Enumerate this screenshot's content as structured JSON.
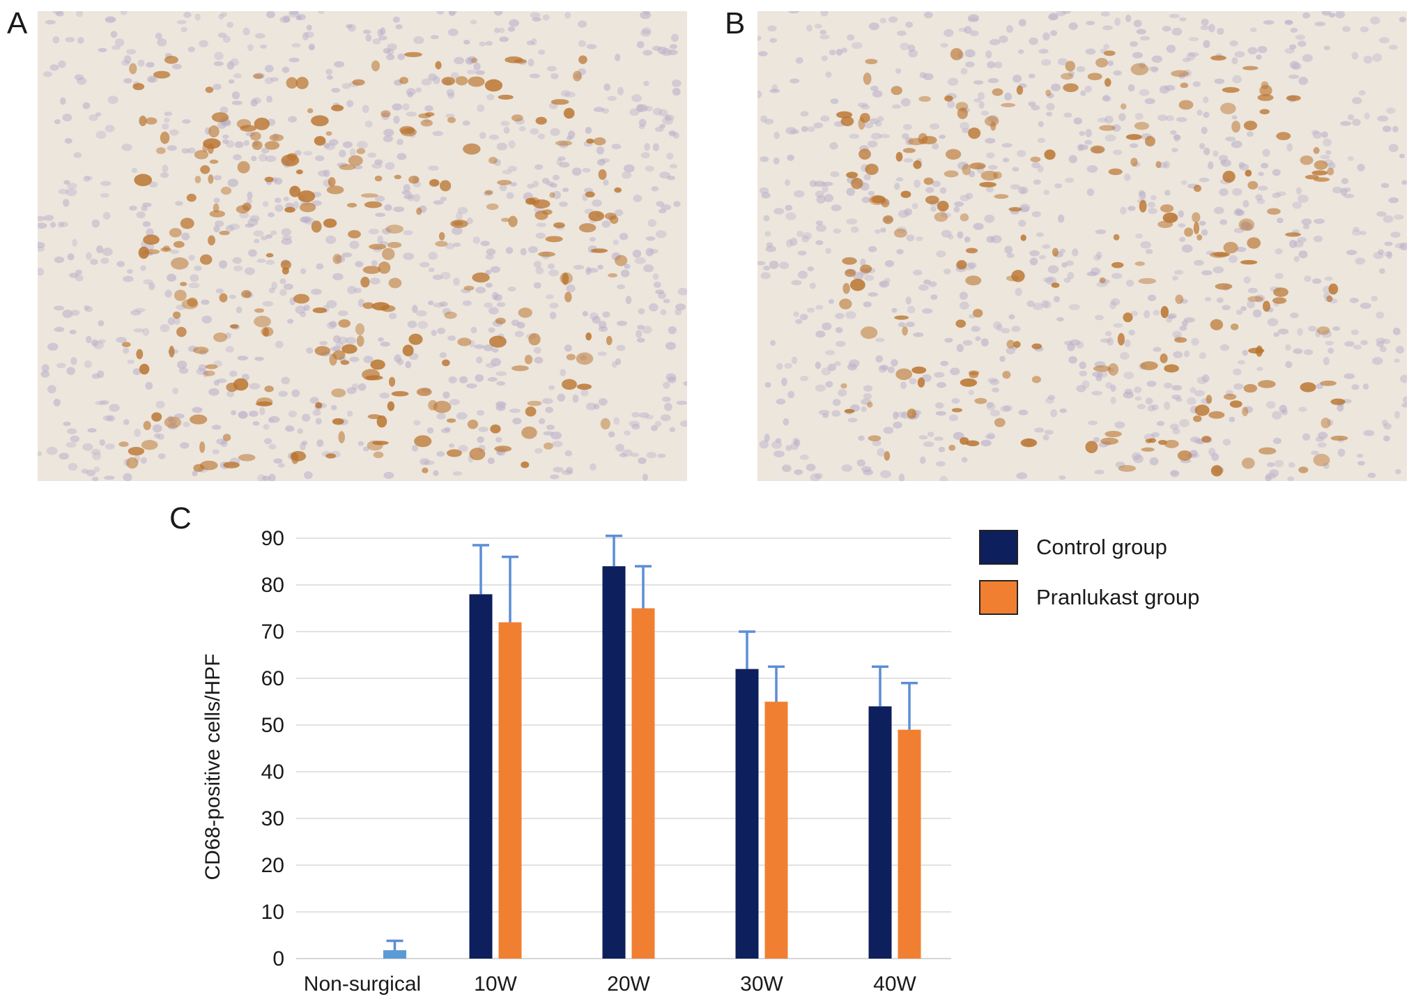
{
  "panels": {
    "a": {
      "label": "A"
    },
    "b": {
      "label": "B"
    },
    "c": {
      "label": "C"
    }
  },
  "colors": {
    "control": "#0d1f5c",
    "pranlukast": "#f07f32",
    "error_bar": "#5b8ed6",
    "non_surgical": "#5b9bd5",
    "gridline": "#d9d9d9",
    "tissue_background": "#ece6dd",
    "stain_brown": "#b9722b",
    "nuclei": "#b8aec8"
  },
  "chart_data": {
    "type": "bar",
    "categories": [
      "Non-surgical",
      "10W",
      "20W",
      "30W",
      "40W"
    ],
    "series": [
      {
        "name": "Control group",
        "values": [
          null,
          78,
          84,
          62,
          54
        ],
        "errors": [
          null,
          10.5,
          6.5,
          8,
          8.5
        ]
      },
      {
        "name": "Pranlukast group",
        "values": [
          null,
          72,
          75,
          55,
          49
        ],
        "errors": [
          null,
          14,
          9,
          7.5,
          10
        ]
      }
    ],
    "non_surgical": {
      "value": 1.8,
      "error": 2
    },
    "title": "",
    "xlabel": "",
    "ylabel": "CD68-positive cells/HPF",
    "ylim": [
      0,
      90
    ],
    "yticks": [
      0,
      10,
      20,
      30,
      40,
      50,
      60,
      70,
      80,
      90
    ],
    "grid": true,
    "legend_position": "right"
  }
}
